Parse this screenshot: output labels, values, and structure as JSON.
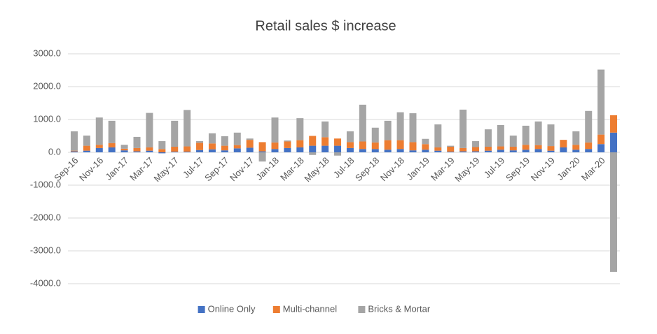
{
  "chart_data": {
    "type": "stacked_bar",
    "title": "Retail sales $ increase",
    "categories": [
      "Sep-16",
      null,
      "Nov-16",
      null,
      "Jan-17",
      null,
      "Mar-17",
      null,
      "May-17",
      null,
      "Jul-17",
      null,
      "Sep-17",
      null,
      "Nov-17",
      null,
      "Jan-18",
      null,
      "Mar-18",
      null,
      "May-18",
      null,
      "Jul-18",
      null,
      "Sep-18",
      null,
      "Nov-18",
      null,
      "Jan-19",
      null,
      "Mar-19",
      null,
      "May-19",
      null,
      "Jul-19",
      null,
      "Sep-19",
      null,
      "Nov-19",
      null,
      "Jan-20",
      null,
      "Mar-20",
      null
    ],
    "series": [
      {
        "name": "Online Only",
        "color": "#4472c4",
        "values": [
          30,
          50,
          130,
          150,
          60,
          30,
          50,
          -30,
          20,
          20,
          70,
          90,
          60,
          120,
          140,
          30,
          100,
          130,
          150,
          200,
          200,
          200,
          130,
          100,
          100,
          80,
          100,
          60,
          80,
          50,
          20,
          30,
          30,
          50,
          80,
          60,
          80,
          100,
          50,
          150,
          80,
          100,
          250,
          600
        ]
      },
      {
        "name": "Multi-channel",
        "color": "#ed7d31",
        "values": [
          20,
          150,
          100,
          130,
          50,
          100,
          100,
          100,
          150,
          160,
          220,
          180,
          140,
          100,
          240,
          280,
          200,
          200,
          220,
          300,
          260,
          220,
          180,
          230,
          200,
          290,
          270,
          250,
          170,
          100,
          150,
          100,
          130,
          120,
          100,
          110,
          150,
          120,
          140,
          230,
          150,
          200,
          290,
          530
        ]
      },
      {
        "name": "Bricks & Mortar",
        "color": "#a5a5a5",
        "values": [
          590,
          310,
          830,
          680,
          120,
          340,
          1050,
          240,
          790,
          1110,
          50,
          310,
          290,
          380,
          40,
          -280,
          760,
          30,
          670,
          -80,
          480,
          -100,
          330,
          1120,
          450,
          590,
          850,
          880,
          160,
          700,
          30,
          1170,
          180,
          530,
          650,
          340,
          580,
          720,
          660,
          0,
          410,
          960,
          1980,
          -3640
        ]
      }
    ],
    "ylim": [
      -4000,
      3000
    ],
    "yticks": [
      {
        "value": -4000,
        "label": "-4000.0"
      },
      {
        "value": -3000,
        "label": "-3000.0"
      },
      {
        "value": -2000,
        "label": "-2000.0"
      },
      {
        "value": -1000,
        "label": "-1000.0"
      },
      {
        "value": 0,
        "label": "0.0"
      },
      {
        "value": 1000,
        "label": "1000.0"
      },
      {
        "value": 2000,
        "label": "2000.0"
      },
      {
        "value": 3000,
        "label": "3000.0"
      }
    ],
    "grid": true,
    "legend": "bottom"
  }
}
